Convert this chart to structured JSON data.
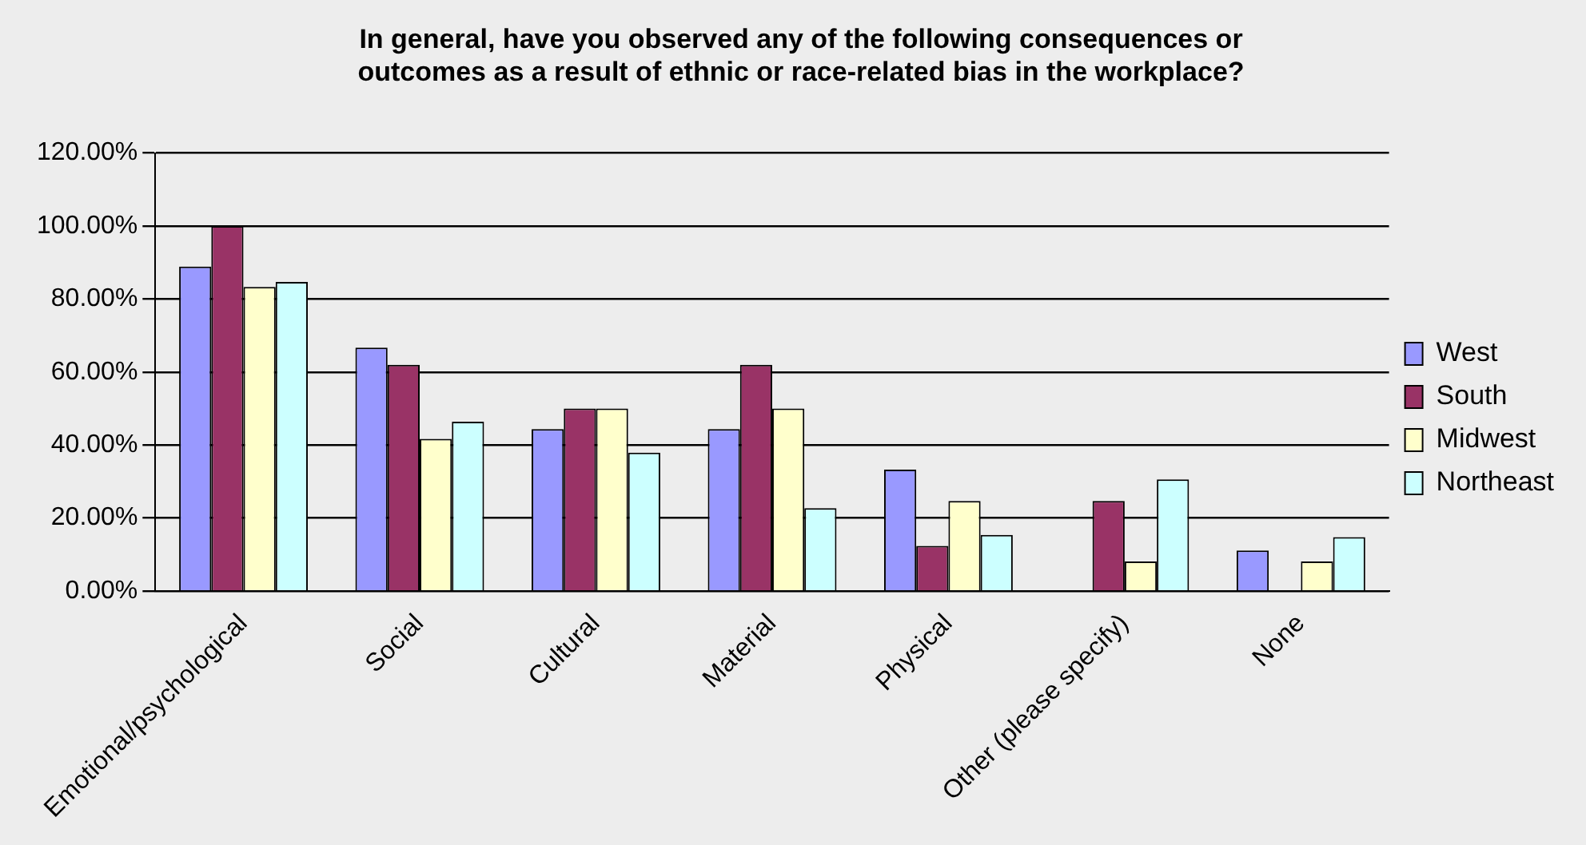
{
  "chart_data": {
    "type": "bar",
    "title": [
      "In general, have you observed any of the following consequences or",
      "outcomes as a result of ethnic or race-related bias in the workplace?"
    ],
    "categories": [
      "Emotional/psychological",
      "Social",
      "Cultural",
      "Material",
      "Physical",
      "Other (please specify)",
      "None"
    ],
    "series": [
      {
        "name": "West",
        "color": "#9999ff",
        "values": [
          88.9,
          66.7,
          44.4,
          44.4,
          33.3,
          0,
          11.1
        ]
      },
      {
        "name": "South",
        "color": "#993366",
        "values": [
          100,
          62,
          50,
          62,
          12.4,
          24.7,
          0
        ]
      },
      {
        "name": "Midwest",
        "color": "#ffffcc",
        "values": [
          83.3,
          41.7,
          50,
          50,
          24.7,
          8.1,
          8.1
        ]
      },
      {
        "name": "Northeast",
        "color": "#ccffff",
        "values": [
          84.7,
          46.4,
          37.9,
          22.7,
          15.4,
          30.6,
          14.8
        ]
      }
    ],
    "ylim": [
      0,
      120
    ],
    "yticks": [
      {
        "value": 0,
        "label": "0.00%"
      },
      {
        "value": 20,
        "label": "20.00%"
      },
      {
        "value": 40,
        "label": "40.00%"
      },
      {
        "value": 60,
        "label": "60.00%"
      },
      {
        "value": 80,
        "label": "80.00%"
      },
      {
        "value": 100,
        "label": "100.00%"
      },
      {
        "value": 120,
        "label": "120.00%"
      }
    ],
    "grid": "y",
    "legend": "right"
  }
}
